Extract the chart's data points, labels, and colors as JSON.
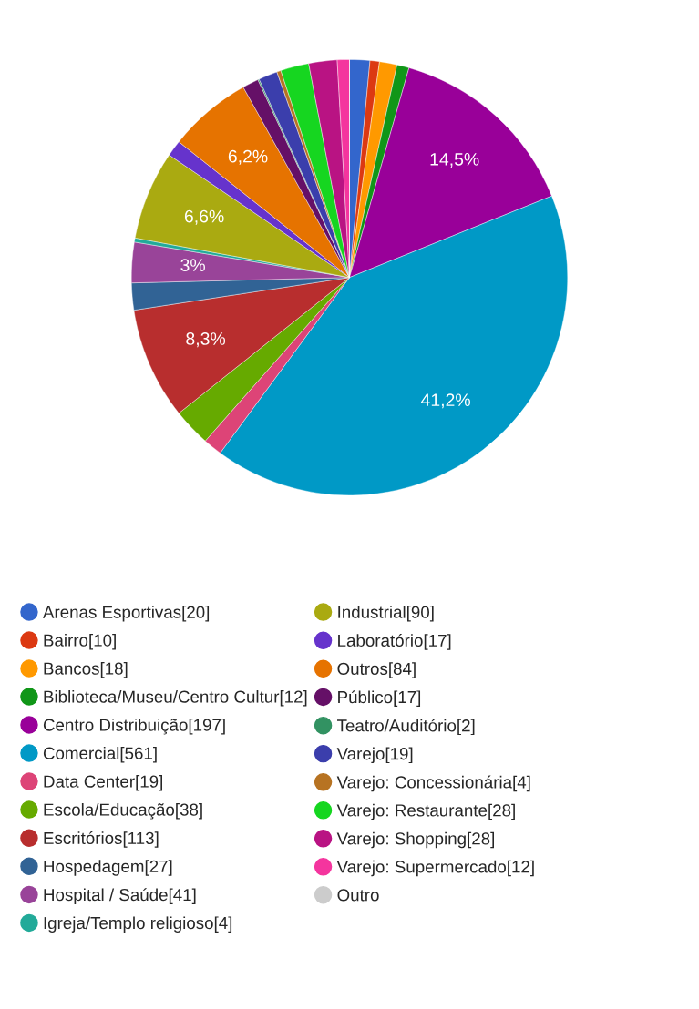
{
  "chart_data": {
    "type": "pie",
    "categories": [
      "Arenas Esportivas[20]",
      "Bairro[10]",
      "Bancos[18]",
      "Biblioteca/Museu/Centro Cultur[12]",
      "Centro Distribuição[197]",
      "Comercial[561]",
      "Data Center[19]",
      "Escola/Educação[38]",
      "Escritórios[113]",
      "Hospedagem[27]",
      "Hospital / Saúde[41]",
      "Igreja/Templo religioso[4]",
      "Industrial[90]",
      "Laboratório[17]",
      "Outros[84]",
      "Público[17]",
      "Teatro/Auditório[2]",
      "Varejo[19]",
      "Varejo: Concessionária[4]",
      "Varejo: Restaurante[28]",
      "Varejo: Shopping[28]",
      "Varejo: Supermercado[12]",
      "Outro"
    ],
    "values": [
      1.5,
      0.7,
      1.3,
      0.9,
      14.5,
      41.2,
      1.4,
      2.8,
      8.3,
      2.0,
      3,
      0.3,
      6.6,
      1.2,
      6.2,
      1.2,
      0.1,
      1.4,
      0.3,
      2.1,
      2.1,
      0.9,
      0
    ],
    "value_labels": [
      null,
      null,
      null,
      null,
      "14,5%",
      "41,2%",
      null,
      null,
      "8,3%",
      null,
      "3%",
      null,
      "6,6%",
      null,
      "6,2%",
      null,
      null,
      null,
      null,
      null,
      null,
      null,
      null
    ],
    "colors": [
      "#3366cc",
      "#dc3912",
      "#ff9900",
      "#109618",
      "#990099",
      "#0099c6",
      "#dd4477",
      "#66aa00",
      "#b82e2e",
      "#316395",
      "#994499",
      "#22aa99",
      "#aaaa11",
      "#6633cc",
      "#e67300",
      "#651067",
      "#329262",
      "#3b3eac",
      "#b77322",
      "#16d620",
      "#b91383",
      "#f4359e",
      "#cccccc"
    ],
    "legend": "bottom"
  }
}
